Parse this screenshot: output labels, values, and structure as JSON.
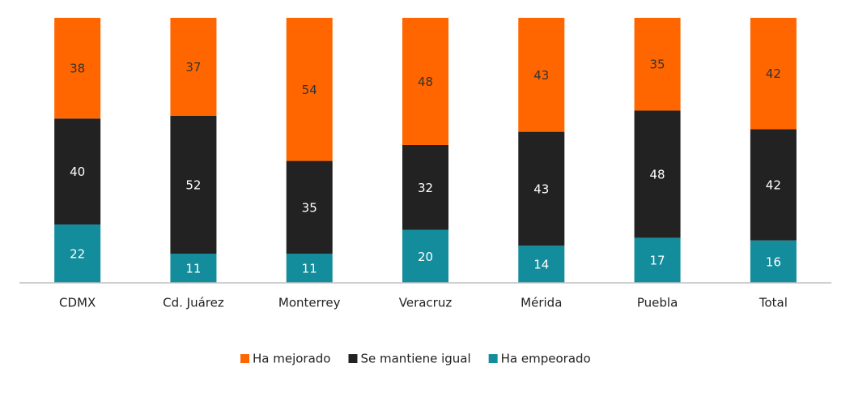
{
  "chart_data": {
    "type": "stacked_bar",
    "categories": [
      "CDMX",
      "Cd. Juárez",
      "Monterrey",
      "Veracruz",
      "Mérida",
      "Puebla",
      "Total"
    ],
    "series": [
      {
        "name": "Ha mejorado",
        "color": "#ff6600",
        "label_color": "#333333",
        "values": [
          38,
          37,
          54,
          48,
          43,
          35,
          42
        ]
      },
      {
        "name": "Se mantiene igual",
        "color": "#222222",
        "label_color": "#ffffff",
        "values": [
          40,
          52,
          35,
          32,
          43,
          48,
          42
        ]
      },
      {
        "name": "Ha empeorado",
        "color": "#138c9c",
        "label_color": "#ffffff",
        "values": [
          22,
          11,
          11,
          20,
          14,
          17,
          16
        ]
      }
    ],
    "ylim": [
      0,
      100
    ]
  }
}
